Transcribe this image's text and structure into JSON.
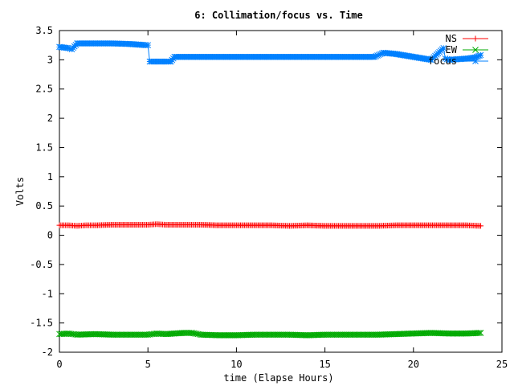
{
  "chart_data": {
    "type": "line",
    "title": "6: Collimation/focus vs. Time",
    "xlabel": "time (Elapse Hours)",
    "ylabel": "Volts",
    "xlim": [
      0,
      25
    ],
    "ylim": [
      -2,
      3.5
    ],
    "xticks": [
      0,
      5,
      10,
      15,
      20,
      25
    ],
    "xtick_labels": [
      "0",
      "5",
      "10",
      "15",
      "20",
      "25"
    ],
    "yticks": [
      -2,
      -1.5,
      -1,
      -0.5,
      0,
      0.5,
      1,
      1.5,
      2,
      2.5,
      3,
      3.5
    ],
    "ytick_labels": [
      "-2",
      "-1.5",
      "-1",
      "-0.5",
      "0",
      "0.5",
      "1",
      "1.5",
      "2",
      "2.5",
      "3",
      "3.5"
    ],
    "grid": false,
    "legend_position": "top-right",
    "series": [
      {
        "name": "NS",
        "color": "#ff0000",
        "marker": "plus",
        "x": [
          0,
          0.5,
          1,
          1.5,
          2,
          3,
          4,
          5,
          5.5,
          6,
          7,
          8,
          9,
          10,
          11,
          12,
          13,
          14,
          15,
          16,
          17,
          18,
          19,
          20,
          21,
          22,
          23,
          23.8
        ],
        "y": [
          0.17,
          0.17,
          0.16,
          0.17,
          0.17,
          0.18,
          0.18,
          0.18,
          0.19,
          0.18,
          0.18,
          0.18,
          0.17,
          0.17,
          0.17,
          0.17,
          0.16,
          0.17,
          0.16,
          0.16,
          0.16,
          0.16,
          0.17,
          0.17,
          0.17,
          0.17,
          0.17,
          0.16
        ]
      },
      {
        "name": "EW",
        "color": "#00aa00",
        "marker": "x",
        "x": [
          0,
          0.5,
          1,
          2,
          3,
          4,
          5,
          5.5,
          6,
          7,
          7.5,
          8,
          9,
          10,
          11,
          12,
          13,
          14,
          15,
          16,
          17,
          18,
          19,
          20,
          21,
          22,
          23,
          23.8
        ],
        "y": [
          -1.69,
          -1.68,
          -1.7,
          -1.69,
          -1.7,
          -1.7,
          -1.7,
          -1.68,
          -1.69,
          -1.67,
          -1.67,
          -1.7,
          -1.71,
          -1.71,
          -1.7,
          -1.7,
          -1.7,
          -1.71,
          -1.7,
          -1.7,
          -1.7,
          -1.7,
          -1.69,
          -1.68,
          -1.67,
          -1.68,
          -1.68,
          -1.67
        ]
      },
      {
        "name": "focus",
        "color": "#0080ff",
        "marker": "star",
        "x": [
          0,
          0.5,
          0.7,
          1,
          2,
          3,
          4,
          4.9,
          5.0,
          5.1,
          6.0,
          6.3,
          6.5,
          8,
          10,
          12,
          14,
          16,
          17.8,
          18.3,
          19,
          20,
          21,
          21.7,
          21.8,
          22,
          23,
          23.5,
          23.8
        ],
        "y": [
          3.22,
          3.2,
          3.18,
          3.28,
          3.28,
          3.28,
          3.27,
          3.25,
          3.25,
          2.97,
          2.97,
          2.97,
          3.05,
          3.05,
          3.05,
          3.05,
          3.05,
          3.05,
          3.05,
          3.12,
          3.1,
          3.05,
          3.0,
          3.2,
          3.02,
          3.0,
          3.02,
          3.04,
          3.08
        ]
      }
    ]
  }
}
